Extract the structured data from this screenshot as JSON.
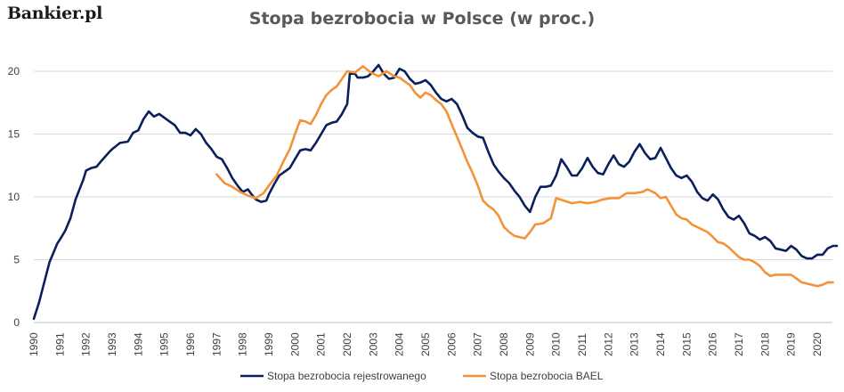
{
  "logo": {
    "text": "Bankier.pl"
  },
  "chart_data": {
    "type": "line",
    "title": "Stopa bezrobocia w Polsce (w proc.)",
    "xlabel": "",
    "ylabel": "",
    "xlim": [
      1990,
      2020.75
    ],
    "ylim": [
      0,
      20
    ],
    "x_ticks": [
      "1990",
      "1991",
      "1992",
      "1993",
      "1994",
      "1995",
      "1996",
      "1997",
      "1998",
      "1999",
      "2000",
      "2001",
      "2002",
      "2003",
      "2004",
      "2005",
      "2006",
      "2007",
      "2008",
      "2009",
      "2010",
      "2011",
      "2012",
      "2013",
      "2014",
      "2015",
      "2016",
      "2017",
      "2018",
      "2019",
      "2020"
    ],
    "y_ticks": [
      "0",
      "5",
      "10",
      "15",
      "20"
    ],
    "grid": "horizontal",
    "legend_position": "bottom",
    "series": [
      {
        "name": "Stopa bezrobocia rejestrowanego",
        "color": "#0b1f5c",
        "points": [
          [
            1990.0,
            0.3
          ],
          [
            1990.2,
            1.6
          ],
          [
            1990.4,
            3.2
          ],
          [
            1990.6,
            4.8
          ],
          [
            1990.9,
            6.3
          ],
          [
            1991.0,
            6.6
          ],
          [
            1991.2,
            7.3
          ],
          [
            1991.4,
            8.3
          ],
          [
            1991.6,
            9.8
          ],
          [
            1991.9,
            11.4
          ],
          [
            1992.0,
            12.1
          ],
          [
            1992.2,
            12.3
          ],
          [
            1992.4,
            12.4
          ],
          [
            1992.6,
            12.9
          ],
          [
            1992.9,
            13.6
          ],
          [
            1993.0,
            13.8
          ],
          [
            1993.3,
            14.3
          ],
          [
            1993.6,
            14.4
          ],
          [
            1993.8,
            15.1
          ],
          [
            1994.0,
            15.3
          ],
          [
            1994.2,
            16.2
          ],
          [
            1994.4,
            16.8
          ],
          [
            1994.6,
            16.4
          ],
          [
            1994.8,
            16.6
          ],
          [
            1995.0,
            16.3
          ],
          [
            1995.2,
            16.0
          ],
          [
            1995.4,
            15.7
          ],
          [
            1995.6,
            15.1
          ],
          [
            1995.8,
            15.1
          ],
          [
            1996.0,
            14.9
          ],
          [
            1996.2,
            15.4
          ],
          [
            1996.4,
            15.0
          ],
          [
            1996.6,
            14.3
          ],
          [
            1996.8,
            13.8
          ],
          [
            1997.0,
            13.2
          ],
          [
            1997.2,
            13.0
          ],
          [
            1997.4,
            12.3
          ],
          [
            1997.6,
            11.5
          ],
          [
            1997.8,
            10.9
          ],
          [
            1998.0,
            10.4
          ],
          [
            1998.2,
            10.6
          ],
          [
            1998.3,
            10.3
          ],
          [
            1998.5,
            9.8
          ],
          [
            1998.7,
            9.6
          ],
          [
            1998.9,
            9.7
          ],
          [
            1999.0,
            10.2
          ],
          [
            1999.2,
            11.0
          ],
          [
            1999.4,
            11.7
          ],
          [
            1999.6,
            12.0
          ],
          [
            1999.8,
            12.3
          ],
          [
            2000.0,
            13.0
          ],
          [
            2000.2,
            13.7
          ],
          [
            2000.4,
            13.8
          ],
          [
            2000.6,
            13.7
          ],
          [
            2000.8,
            14.3
          ],
          [
            2001.0,
            15.0
          ],
          [
            2001.2,
            15.7
          ],
          [
            2001.4,
            15.9
          ],
          [
            2001.6,
            16.0
          ],
          [
            2001.8,
            16.6
          ],
          [
            2002.0,
            17.4
          ],
          [
            2002.1,
            19.8
          ],
          [
            2002.3,
            19.8
          ],
          [
            2002.4,
            19.5
          ],
          [
            2002.6,
            19.5
          ],
          [
            2002.8,
            19.6
          ],
          [
            2003.0,
            20.0
          ],
          [
            2003.2,
            20.5
          ],
          [
            2003.4,
            19.8
          ],
          [
            2003.6,
            19.4
          ],
          [
            2003.8,
            19.5
          ],
          [
            2004.0,
            20.2
          ],
          [
            2004.2,
            20.0
          ],
          [
            2004.4,
            19.4
          ],
          [
            2004.6,
            19.0
          ],
          [
            2004.8,
            19.1
          ],
          [
            2005.0,
            19.3
          ],
          [
            2005.2,
            18.9
          ],
          [
            2005.4,
            18.3
          ],
          [
            2005.6,
            17.8
          ],
          [
            2005.8,
            17.6
          ],
          [
            2006.0,
            17.8
          ],
          [
            2006.2,
            17.4
          ],
          [
            2006.4,
            16.5
          ],
          [
            2006.6,
            15.5
          ],
          [
            2006.8,
            15.1
          ],
          [
            2007.0,
            14.8
          ],
          [
            2007.2,
            14.7
          ],
          [
            2007.4,
            13.6
          ],
          [
            2007.6,
            12.6
          ],
          [
            2007.8,
            12.0
          ],
          [
            2008.0,
            11.5
          ],
          [
            2008.2,
            11.1
          ],
          [
            2008.4,
            10.5
          ],
          [
            2008.6,
            10.0
          ],
          [
            2008.8,
            9.3
          ],
          [
            2009.0,
            8.8
          ],
          [
            2009.2,
            10.0
          ],
          [
            2009.4,
            10.8
          ],
          [
            2009.6,
            10.8
          ],
          [
            2009.8,
            10.9
          ],
          [
            2010.0,
            11.7
          ],
          [
            2010.2,
            13.0
          ],
          [
            2010.4,
            12.4
          ],
          [
            2010.6,
            11.7
          ],
          [
            2010.8,
            11.7
          ],
          [
            2011.0,
            12.3
          ],
          [
            2011.2,
            13.1
          ],
          [
            2011.4,
            12.4
          ],
          [
            2011.6,
            11.9
          ],
          [
            2011.8,
            11.8
          ],
          [
            2012.0,
            12.6
          ],
          [
            2012.2,
            13.3
          ],
          [
            2012.4,
            12.6
          ],
          [
            2012.6,
            12.4
          ],
          [
            2012.8,
            12.8
          ],
          [
            2013.0,
            13.6
          ],
          [
            2013.2,
            14.2
          ],
          [
            2013.4,
            13.5
          ],
          [
            2013.6,
            13.0
          ],
          [
            2013.8,
            13.1
          ],
          [
            2014.0,
            13.9
          ],
          [
            2014.2,
            13.1
          ],
          [
            2014.4,
            12.3
          ],
          [
            2014.6,
            11.7
          ],
          [
            2014.8,
            11.5
          ],
          [
            2015.0,
            11.7
          ],
          [
            2015.2,
            11.2
          ],
          [
            2015.4,
            10.4
          ],
          [
            2015.6,
            9.9
          ],
          [
            2015.8,
            9.7
          ],
          [
            2016.0,
            10.2
          ],
          [
            2016.2,
            9.8
          ],
          [
            2016.4,
            9.0
          ],
          [
            2016.6,
            8.4
          ],
          [
            2016.8,
            8.2
          ],
          [
            2017.0,
            8.5
          ],
          [
            2017.2,
            7.9
          ],
          [
            2017.4,
            7.1
          ],
          [
            2017.6,
            6.9
          ],
          [
            2017.8,
            6.6
          ],
          [
            2018.0,
            6.8
          ],
          [
            2018.2,
            6.5
          ],
          [
            2018.4,
            5.9
          ],
          [
            2018.6,
            5.8
          ],
          [
            2018.8,
            5.7
          ],
          [
            2019.0,
            6.1
          ],
          [
            2019.2,
            5.8
          ],
          [
            2019.4,
            5.3
          ],
          [
            2019.6,
            5.1
          ],
          [
            2019.8,
            5.1
          ],
          [
            2020.0,
            5.4
          ],
          [
            2020.2,
            5.4
          ],
          [
            2020.4,
            5.9
          ],
          [
            2020.6,
            6.1
          ],
          [
            2020.75,
            6.1
          ]
        ]
      },
      {
        "name": "Stopa bezrobocia BAEL",
        "color": "#f39339",
        "points": [
          [
            1997.0,
            11.8
          ],
          [
            1997.3,
            11.1
          ],
          [
            1997.6,
            10.8
          ],
          [
            1997.9,
            10.4
          ],
          [
            1998.2,
            10.1
          ],
          [
            1998.5,
            9.9
          ],
          [
            1998.8,
            10.3
          ],
          [
            1999.0,
            10.9
          ],
          [
            1999.3,
            11.7
          ],
          [
            1999.6,
            13.0
          ],
          [
            1999.8,
            13.8
          ],
          [
            2000.0,
            15.0
          ],
          [
            2000.2,
            16.1
          ],
          [
            2000.4,
            16.0
          ],
          [
            2000.6,
            15.8
          ],
          [
            2000.8,
            16.5
          ],
          [
            2001.0,
            17.4
          ],
          [
            2001.2,
            18.1
          ],
          [
            2001.4,
            18.5
          ],
          [
            2001.6,
            18.8
          ],
          [
            2001.8,
            19.4
          ],
          [
            2002.0,
            20.0
          ],
          [
            2002.3,
            19.9
          ],
          [
            2002.6,
            20.4
          ],
          [
            2002.9,
            19.9
          ],
          [
            2003.2,
            19.6
          ],
          [
            2003.5,
            20.0
          ],
          [
            2003.8,
            19.6
          ],
          [
            2004.0,
            19.5
          ],
          [
            2004.2,
            19.2
          ],
          [
            2004.4,
            18.9
          ],
          [
            2004.6,
            18.3
          ],
          [
            2004.8,
            17.9
          ],
          [
            2005.0,
            18.3
          ],
          [
            2005.2,
            18.1
          ],
          [
            2005.4,
            17.7
          ],
          [
            2005.6,
            17.4
          ],
          [
            2005.8,
            16.8
          ],
          [
            2006.0,
            15.8
          ],
          [
            2006.2,
            14.8
          ],
          [
            2006.4,
            13.8
          ],
          [
            2006.6,
            12.8
          ],
          [
            2006.8,
            11.9
          ],
          [
            2007.0,
            10.9
          ],
          [
            2007.2,
            9.7
          ],
          [
            2007.4,
            9.3
          ],
          [
            2007.6,
            9.0
          ],
          [
            2007.8,
            8.5
          ],
          [
            2008.0,
            7.6
          ],
          [
            2008.2,
            7.2
          ],
          [
            2008.4,
            6.9
          ],
          [
            2008.6,
            6.8
          ],
          [
            2008.8,
            6.7
          ],
          [
            2009.0,
            7.2
          ],
          [
            2009.2,
            7.8
          ],
          [
            2009.5,
            7.9
          ],
          [
            2009.8,
            8.3
          ],
          [
            2010.0,
            9.9
          ],
          [
            2010.3,
            9.7
          ],
          [
            2010.6,
            9.5
          ],
          [
            2010.9,
            9.6
          ],
          [
            2011.2,
            9.5
          ],
          [
            2011.5,
            9.6
          ],
          [
            2011.8,
            9.8
          ],
          [
            2012.1,
            9.9
          ],
          [
            2012.4,
            9.9
          ],
          [
            2012.7,
            10.3
          ],
          [
            2013.0,
            10.3
          ],
          [
            2013.3,
            10.4
          ],
          [
            2013.5,
            10.6
          ],
          [
            2013.8,
            10.3
          ],
          [
            2014.0,
            9.9
          ],
          [
            2014.2,
            10.0
          ],
          [
            2014.4,
            9.3
          ],
          [
            2014.6,
            8.6
          ],
          [
            2014.8,
            8.3
          ],
          [
            2015.0,
            8.2
          ],
          [
            2015.2,
            7.8
          ],
          [
            2015.4,
            7.6
          ],
          [
            2015.6,
            7.4
          ],
          [
            2015.8,
            7.2
          ],
          [
            2016.0,
            6.8
          ],
          [
            2016.2,
            6.4
          ],
          [
            2016.4,
            6.3
          ],
          [
            2016.6,
            6.0
          ],
          [
            2016.8,
            5.6
          ],
          [
            2017.0,
            5.2
          ],
          [
            2017.2,
            5.0
          ],
          [
            2017.4,
            5.0
          ],
          [
            2017.6,
            4.8
          ],
          [
            2017.8,
            4.5
          ],
          [
            2018.0,
            4.0
          ],
          [
            2018.2,
            3.7
          ],
          [
            2018.4,
            3.8
          ],
          [
            2018.6,
            3.8
          ],
          [
            2018.8,
            3.8
          ],
          [
            2019.0,
            3.8
          ],
          [
            2019.2,
            3.5
          ],
          [
            2019.4,
            3.2
          ],
          [
            2019.6,
            3.1
          ],
          [
            2019.8,
            3.0
          ],
          [
            2020.0,
            2.9
          ],
          [
            2020.2,
            3.0
          ],
          [
            2020.4,
            3.2
          ],
          [
            2020.6,
            3.2
          ]
        ]
      }
    ]
  }
}
